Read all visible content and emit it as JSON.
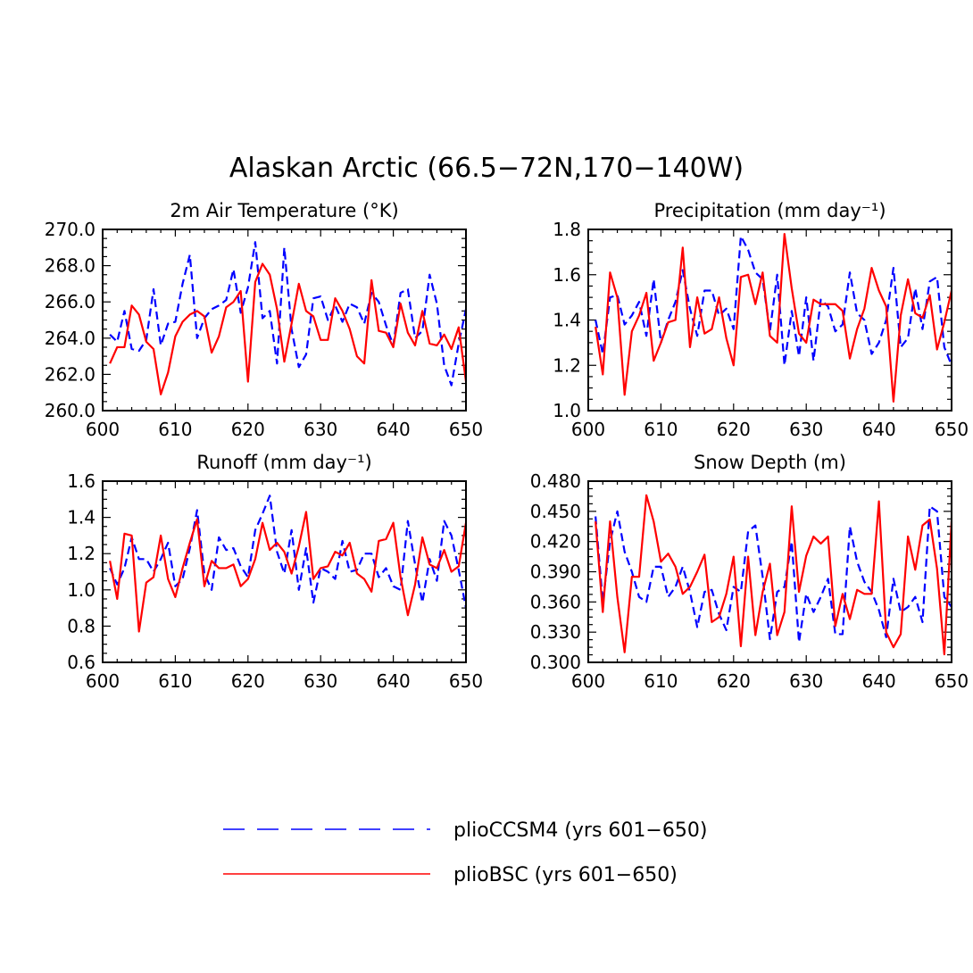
{
  "figure": {
    "title": "Alaskan Arctic (66.5−72N,170−140W)"
  },
  "legend": {
    "entries": [
      {
        "label": "plioCCSM4 (yrs 601−650)",
        "color": "#0000ff",
        "dash": "dashed"
      },
      {
        "label": "plioBSC (yrs 601−650)",
        "color": "#ff0000",
        "dash": "solid"
      }
    ]
  },
  "chart_data": [
    {
      "type": "line",
      "title": "2m Air Temperature (°K)",
      "xlabel": "",
      "ylabel": "",
      "xlim": [
        600,
        650
      ],
      "ylim": [
        260,
        270
      ],
      "xticks": [
        600,
        610,
        620,
        630,
        640,
        650
      ],
      "yticks": [
        260,
        262,
        264,
        266,
        268,
        270
      ],
      "ytick_labels": [
        "260.0",
        "262.0",
        "264.0",
        "266.0",
        "268.0",
        "270.0"
      ],
      "x": [
        601,
        602,
        603,
        604,
        605,
        606,
        607,
        608,
        609,
        610,
        611,
        612,
        613,
        614,
        615,
        616,
        617,
        618,
        619,
        620,
        621,
        622,
        623,
        624,
        625,
        626,
        627,
        628,
        629,
        630,
        631,
        632,
        633,
        634,
        635,
        636,
        637,
        638,
        639,
        640,
        641,
        642,
        643,
        644,
        645,
        646,
        647,
        648,
        649,
        650
      ],
      "series": [
        {
          "name": "plioCCSM4 (yrs 601−650)",
          "color": "#0000ff",
          "dash": "dashed",
          "values": [
            264.2,
            263.8,
            265.5,
            263.4,
            263.3,
            263.9,
            266.7,
            263.6,
            264.8,
            264.9,
            267.0,
            268.6,
            264.0,
            265.1,
            265.6,
            265.8,
            266.1,
            267.8,
            265.4,
            266.8,
            269.3,
            265.1,
            265.5,
            262.6,
            269.0,
            264.5,
            262.4,
            263.1,
            266.2,
            266.3,
            265.0,
            265.8,
            264.9,
            265.9,
            265.7,
            264.8,
            266.5,
            266.0,
            264.7,
            263.6,
            266.5,
            266.7,
            264.0,
            264.4,
            267.5,
            265.9,
            262.5,
            261.4,
            263.7,
            265.6
          ]
        },
        {
          "name": "plioBSC (yrs 601−650)",
          "color": "#ff0000",
          "dash": "solid",
          "values": [
            262.6,
            263.5,
            263.5,
            265.8,
            265.3,
            263.8,
            263.4,
            260.9,
            262.1,
            264.1,
            264.9,
            265.3,
            265.5,
            265.2,
            263.2,
            264.1,
            265.7,
            266.0,
            266.6,
            261.6,
            267.1,
            268.1,
            267.5,
            265.6,
            262.7,
            264.8,
            267.0,
            265.5,
            265.2,
            263.9,
            263.9,
            266.2,
            265.5,
            264.5,
            263.0,
            262.6,
            267.2,
            264.4,
            264.3,
            263.5,
            265.9,
            264.3,
            263.6,
            265.5,
            263.7,
            263.6,
            264.2,
            263.4,
            264.6,
            261.6
          ]
        }
      ]
    },
    {
      "type": "line",
      "title": "Precipitation (mm day⁻¹)",
      "xlabel": "",
      "ylabel": "",
      "xlim": [
        600,
        650
      ],
      "ylim": [
        1.0,
        1.8
      ],
      "xticks": [
        600,
        610,
        620,
        630,
        640,
        650
      ],
      "yticks": [
        1.0,
        1.2,
        1.4,
        1.6,
        1.8
      ],
      "ytick_labels": [
        "1.0",
        "1.2",
        "1.4",
        "1.6",
        "1.8"
      ],
      "x": [
        601,
        602,
        603,
        604,
        605,
        606,
        607,
        608,
        609,
        610,
        611,
        612,
        613,
        614,
        615,
        616,
        617,
        618,
        619,
        620,
        621,
        622,
        623,
        624,
        625,
        626,
        627,
        628,
        629,
        630,
        631,
        632,
        633,
        634,
        635,
        636,
        637,
        638,
        639,
        640,
        641,
        642,
        643,
        644,
        645,
        646,
        647,
        648,
        649,
        650
      ],
      "series": [
        {
          "name": "plioCCSM4 (yrs 601−650)",
          "color": "#0000ff",
          "dash": "dashed",
          "values": [
            1.4,
            1.25,
            1.5,
            1.51,
            1.38,
            1.42,
            1.48,
            1.33,
            1.58,
            1.3,
            1.4,
            1.48,
            1.62,
            1.45,
            1.33,
            1.53,
            1.53,
            1.42,
            1.45,
            1.36,
            1.77,
            1.71,
            1.61,
            1.58,
            1.35,
            1.6,
            1.2,
            1.44,
            1.24,
            1.5,
            1.22,
            1.49,
            1.46,
            1.35,
            1.38,
            1.61,
            1.43,
            1.4,
            1.25,
            1.3,
            1.4,
            1.63,
            1.28,
            1.32,
            1.54,
            1.36,
            1.57,
            1.59,
            1.28,
            1.2
          ]
        },
        {
          "name": "plioBSC (yrs 601−650)",
          "color": "#ff0000",
          "dash": "solid",
          "values": [
            1.37,
            1.16,
            1.61,
            1.5,
            1.07,
            1.35,
            1.42,
            1.52,
            1.22,
            1.3,
            1.39,
            1.4,
            1.72,
            1.28,
            1.5,
            1.34,
            1.36,
            1.5,
            1.32,
            1.2,
            1.59,
            1.6,
            1.47,
            1.61,
            1.33,
            1.3,
            1.78,
            1.54,
            1.34,
            1.3,
            1.49,
            1.47,
            1.47,
            1.47,
            1.44,
            1.23,
            1.36,
            1.45,
            1.63,
            1.53,
            1.46,
            1.04,
            1.42,
            1.58,
            1.43,
            1.41,
            1.51,
            1.27,
            1.39,
            1.53
          ]
        }
      ]
    },
    {
      "type": "line",
      "title": "Runoff (mm day⁻¹)",
      "xlabel": "",
      "ylabel": "",
      "xlim": [
        600,
        650
      ],
      "ylim": [
        0.6,
        1.6
      ],
      "xticks": [
        600,
        610,
        620,
        630,
        640,
        650
      ],
      "yticks": [
        0.6,
        0.8,
        1.0,
        1.2,
        1.4,
        1.6
      ],
      "ytick_labels": [
        "0.6",
        "0.8",
        "1.0",
        "1.2",
        "1.4",
        "1.6"
      ],
      "x": [
        601,
        602,
        603,
        604,
        605,
        606,
        607,
        608,
        609,
        610,
        611,
        612,
        613,
        614,
        615,
        616,
        617,
        618,
        619,
        620,
        621,
        622,
        623,
        624,
        625,
        626,
        627,
        628,
        629,
        630,
        631,
        632,
        633,
        634,
        635,
        636,
        637,
        638,
        639,
        640,
        641,
        642,
        643,
        644,
        645,
        646,
        647,
        648,
        649,
        650
      ],
      "series": [
        {
          "name": "plioCCSM4 (yrs 601−650)",
          "color": "#0000ff",
          "dash": "dashed",
          "values": [
            1.12,
            1.03,
            1.12,
            1.29,
            1.17,
            1.17,
            1.1,
            1.17,
            1.26,
            1.02,
            1.06,
            1.23,
            1.44,
            1.09,
            1.0,
            1.29,
            1.22,
            1.23,
            1.13,
            1.07,
            1.33,
            1.42,
            1.52,
            1.21,
            1.09,
            1.33,
            1.0,
            1.23,
            0.93,
            1.12,
            1.1,
            1.06,
            1.27,
            1.1,
            1.11,
            1.2,
            1.2,
            1.07,
            1.12,
            1.02,
            1.0,
            1.38,
            1.14,
            0.93,
            1.17,
            1.05,
            1.38,
            1.3,
            1.11,
            0.9
          ]
        },
        {
          "name": "plioBSC (yrs 601−650)",
          "color": "#ff0000",
          "dash": "solid",
          "values": [
            1.16,
            0.95,
            1.31,
            1.3,
            0.77,
            1.04,
            1.07,
            1.3,
            1.06,
            0.96,
            1.12,
            1.26,
            1.39,
            1.02,
            1.16,
            1.12,
            1.12,
            1.14,
            1.02,
            1.06,
            1.17,
            1.37,
            1.22,
            1.26,
            1.21,
            1.09,
            1.24,
            1.43,
            1.06,
            1.12,
            1.13,
            1.21,
            1.19,
            1.26,
            1.09,
            1.06,
            0.99,
            1.27,
            1.28,
            1.37,
            1.07,
            0.86,
            1.03,
            1.29,
            1.14,
            1.12,
            1.22,
            1.1,
            1.13,
            1.37
          ]
        }
      ]
    },
    {
      "type": "line",
      "title": "Snow Depth (m)",
      "xlabel": "",
      "ylabel": "",
      "xlim": [
        600,
        650
      ],
      "ylim": [
        0.3,
        0.48
      ],
      "xticks": [
        600,
        610,
        620,
        630,
        640,
        650
      ],
      "yticks": [
        0.3,
        0.33,
        0.36,
        0.39,
        0.42,
        0.45,
        0.48
      ],
      "ytick_labels": [
        "0.300",
        "0.330",
        "0.360",
        "0.390",
        "0.420",
        "0.450",
        "0.480"
      ],
      "x": [
        601,
        602,
        603,
        604,
        605,
        606,
        607,
        608,
        609,
        610,
        611,
        612,
        613,
        614,
        615,
        616,
        617,
        618,
        619,
        620,
        621,
        622,
        623,
        624,
        625,
        626,
        627,
        628,
        629,
        630,
        631,
        632,
        633,
        634,
        635,
        636,
        637,
        638,
        639,
        640,
        641,
        642,
        643,
        644,
        645,
        646,
        647,
        648,
        649,
        650
      ],
      "series": [
        {
          "name": "plioCCSM4 (yrs 601−650)",
          "color": "#0000ff",
          "dash": "dashed",
          "values": [
            0.445,
            0.36,
            0.42,
            0.45,
            0.41,
            0.39,
            0.365,
            0.36,
            0.395,
            0.395,
            0.365,
            0.375,
            0.395,
            0.37,
            0.335,
            0.37,
            0.372,
            0.348,
            0.332,
            0.375,
            0.37,
            0.43,
            0.436,
            0.385,
            0.323,
            0.37,
            0.375,
            0.42,
            0.32,
            0.368,
            0.35,
            0.365,
            0.383,
            0.328,
            0.328,
            0.435,
            0.4,
            0.38,
            0.37,
            0.352,
            0.325,
            0.383,
            0.35,
            0.355,
            0.365,
            0.34,
            0.455,
            0.45,
            0.365,
            0.355
          ]
        },
        {
          "name": "plioBSC (yrs 601−650)",
          "color": "#ff0000",
          "dash": "solid",
          "values": [
            0.44,
            0.35,
            0.44,
            0.365,
            0.31,
            0.385,
            0.385,
            0.466,
            0.44,
            0.4,
            0.408,
            0.395,
            0.368,
            0.375,
            0.39,
            0.407,
            0.34,
            0.345,
            0.368,
            0.405,
            0.316,
            0.405,
            0.327,
            0.37,
            0.398,
            0.327,
            0.35,
            0.455,
            0.37,
            0.406,
            0.425,
            0.418,
            0.425,
            0.336,
            0.368,
            0.343,
            0.372,
            0.368,
            0.368,
            0.46,
            0.33,
            0.315,
            0.328,
            0.425,
            0.392,
            0.436,
            0.442,
            0.393,
            0.308,
            0.44
          ]
        }
      ]
    }
  ]
}
